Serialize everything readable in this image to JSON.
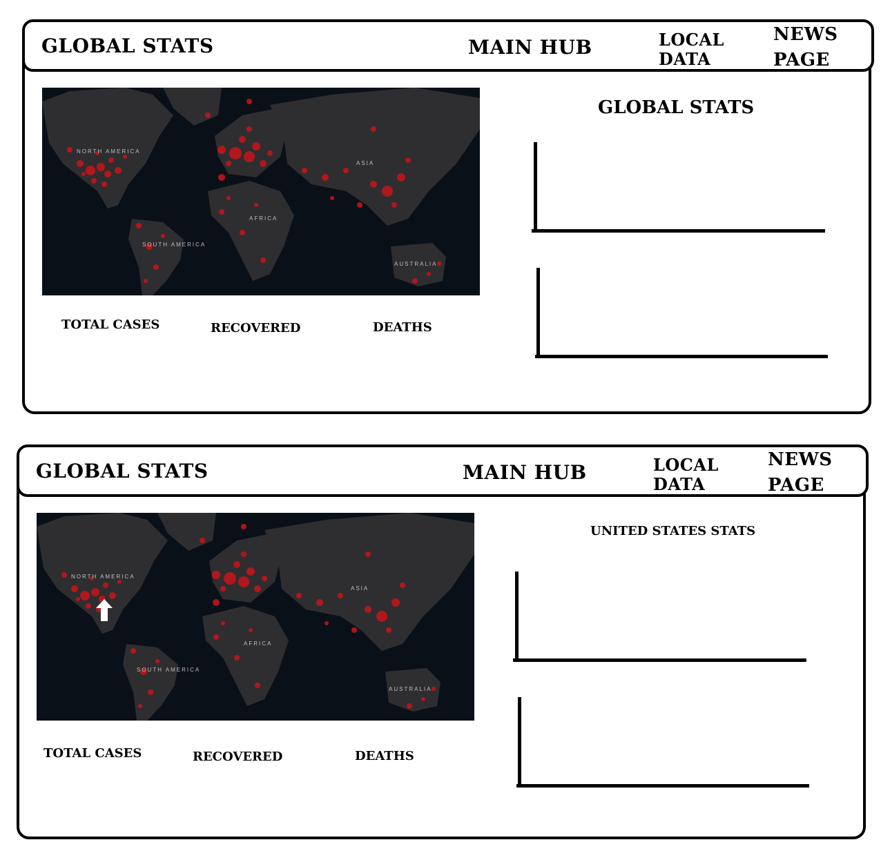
{
  "panels": [
    {
      "nav": {
        "global_stats": "GLOBAL STATS",
        "main_hub": "MAIN HUB",
        "local_data_line1": "LOCAL",
        "local_data_line2": "DATA",
        "news_page_line1": "NEWS",
        "news_page_line2": "PAGE"
      },
      "stats": {
        "total_cases": "TOTAL CASES",
        "recovered": "RECOVERED",
        "deaths": "DEATHS"
      },
      "side_title": "GLOBAL STATS",
      "map_marker": false
    },
    {
      "nav": {
        "global_stats": "GLOBAL STATS",
        "main_hub": "MAIN HUB",
        "local_data_line1": "LOCAL",
        "local_data_line2": "DATA",
        "news_page_line1": "NEWS",
        "news_page_line2": "PAGE"
      },
      "stats": {
        "total_cases": "TOTAL CASES",
        "recovered": "RECOVERED",
        "deaths": "DEATHS"
      },
      "side_title": "UNITED STATES STATS",
      "map_marker": true
    }
  ],
  "map_labels": {
    "north_america": "NORTH AMERICA",
    "south_america": "SOUTH AMERICA",
    "africa": "AFRICA",
    "asia": "ASIA",
    "australia": "AUSTRALIA"
  },
  "colors": {
    "map_bg": "#0a1018",
    "land": "#2e2e30",
    "hotspot": "#c0151b"
  }
}
